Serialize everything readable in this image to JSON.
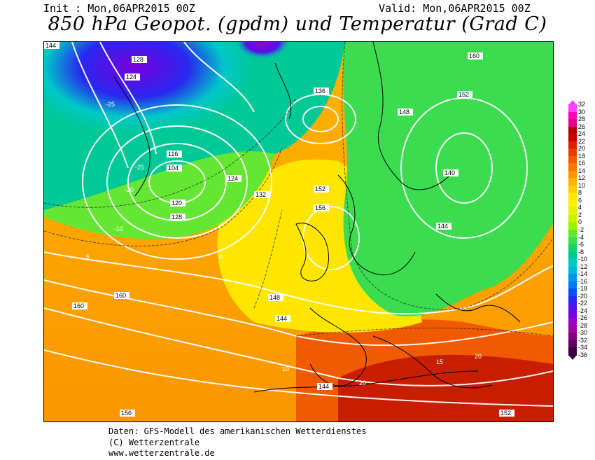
{
  "header": {
    "init": "Init : Mon,06APR2015 00Z",
    "valid": "Valid: Mon,06APR2015 00Z",
    "title": "850 hPa Geopot. (gpdm) und Temperatur (Grad C)"
  },
  "legend": {
    "ticks": [
      "32",
      "30",
      "28",
      "26",
      "24",
      "22",
      "20",
      "18",
      "16",
      "14",
      "12",
      "10",
      "8",
      "6",
      "4",
      "2",
      "0",
      "-2",
      "-4",
      "-6",
      "-8",
      "-10",
      "-12",
      "-14",
      "-16",
      "-18",
      "-20",
      "-22",
      "-24",
      "-26",
      "-28",
      "-30",
      "-32",
      "-34",
      "-36"
    ],
    "colors": [
      "#ff40ff",
      "#ff00c0",
      "#e0008c",
      "#b40000",
      "#c80000",
      "#dc1e00",
      "#e63c00",
      "#f05a00",
      "#f57800",
      "#fa9600",
      "#ffb400",
      "#ffcc00",
      "#ffe600",
      "#fff000",
      "#e6f000",
      "#c8f000",
      "#a0f000",
      "#64e632",
      "#3cdc50",
      "#14d264",
      "#00c896",
      "#00c8c8",
      "#00b4dc",
      "#0096e6",
      "#0078f0",
      "#0050f0",
      "#2828f0",
      "#5014e6",
      "#7800dc",
      "#9600c8",
      "#a000a0",
      "#800080",
      "#600060",
      "#3d0040"
    ]
  },
  "map": {
    "geopotential_labels": [
      "144",
      "128",
      "124",
      "120",
      "116",
      "112",
      "108",
      "104",
      "132",
      "140",
      "136",
      "148",
      "152",
      "156",
      "160",
      "120",
      "128",
      "136",
      "140",
      "144",
      "148",
      "152",
      "156",
      "160",
      "140",
      "148",
      "152",
      "144",
      "144",
      "140",
      "124",
      "132",
      "152",
      "148",
      "152"
    ],
    "temperature_labels": [
      "-25",
      "-20",
      "-15",
      "-10",
      "-5",
      "0",
      "5",
      "10",
      "15",
      "20",
      "-35",
      "-30",
      "-25",
      "-20",
      "-15",
      "-10",
      "-5",
      "0",
      "5",
      "10",
      "15",
      "20"
    ],
    "grid_labels": [
      "-5",
      "-5",
      "-5",
      "-5",
      "-5",
      "-5",
      "0",
      "0",
      "0",
      "5",
      "5",
      "10",
      "10",
      "20",
      "20",
      "-5",
      "-10",
      "-15",
      "-20",
      "-10",
      "-5"
    ]
  },
  "footer": {
    "line1": "Daten: GFS-Modell des amerikanischen Wetterdienstes",
    "line2": "(C) Wetterzentrale",
    "line3": "www.wetterzentrale.de"
  }
}
